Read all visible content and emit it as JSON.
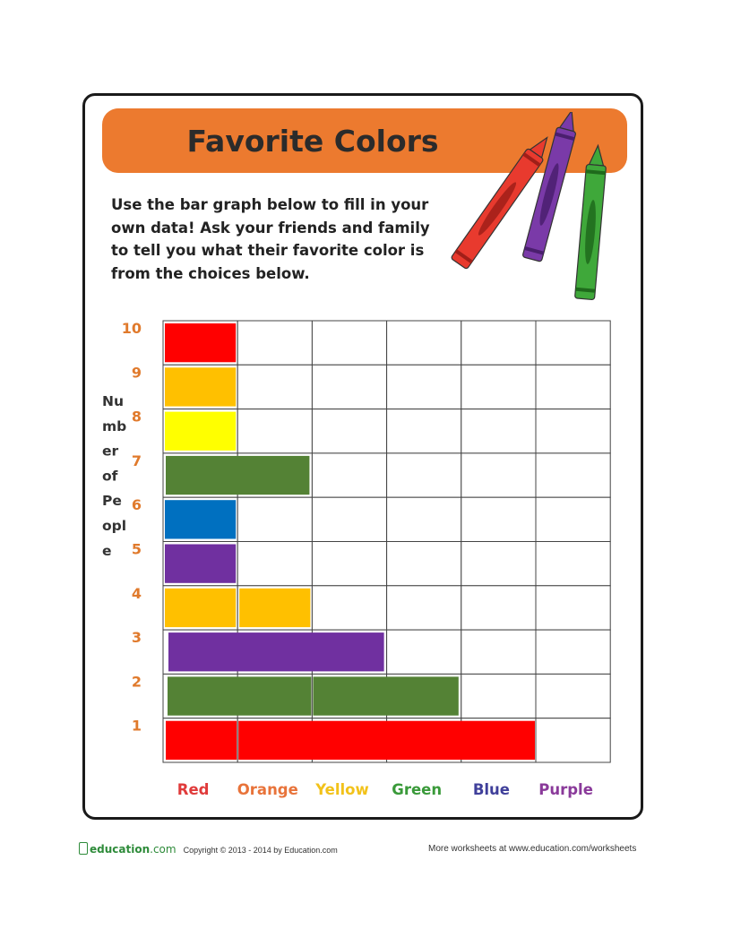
{
  "page": {
    "title": "Favorite Colors",
    "instructions": "Use the bar graph below to fill in your own data! Ask your friends and family to tell you what their favorite color is from the choices below."
  },
  "colors": {
    "banner": "#ec7a2f",
    "tick_labels": "#e07a2c",
    "red": "#ff0000",
    "orange": "#ffc000",
    "yellow": "#ffff00",
    "green": "#548235",
    "blue": "#0070c0",
    "purple": "#7030a0"
  },
  "chart_data": {
    "type": "bar",
    "ylabel": "Number of People",
    "ylabel_lines": [
      "Nu",
      "mb",
      "er",
      "of",
      "Pe",
      "opl",
      "e"
    ],
    "y_ticks": [
      1,
      2,
      3,
      4,
      5,
      6,
      7,
      8,
      9,
      10
    ],
    "categories": [
      {
        "label": "Red",
        "color": "#e03a3a"
      },
      {
        "label": "Orange",
        "color": "#e8733a"
      },
      {
        "label": "Yellow",
        "color": "#f2c21a"
      },
      {
        "label": "Green",
        "color": "#3a9a3a"
      },
      {
        "label": "Blue",
        "color": "#3f3f9a"
      },
      {
        "label": "Purple",
        "color": "#8a3a9a"
      }
    ],
    "grid": true,
    "rows": [
      {
        "value": 10,
        "cells": [
          "red"
        ]
      },
      {
        "value": 9,
        "cells": [
          "orange"
        ]
      },
      {
        "value": 8,
        "cells": [
          "yellow"
        ]
      },
      {
        "value": 7,
        "cells": [
          "green",
          "green"
        ]
      },
      {
        "value": 6,
        "cells": [
          "blue"
        ]
      },
      {
        "value": 5,
        "cells": [
          "purple"
        ]
      },
      {
        "value": 4,
        "cells": [
          "orange",
          "orange"
        ]
      },
      {
        "value": 3,
        "cells": [
          "purple",
          "purple",
          "purple"
        ]
      },
      {
        "value": 2,
        "cells": [
          "green",
          "green",
          "green",
          "green"
        ]
      },
      {
        "value": 1,
        "cells": [
          "red",
          "red",
          "red",
          "red",
          "red"
        ]
      }
    ]
  },
  "crayons": [
    {
      "name": "red",
      "color": "#e83a2e",
      "dark": "#a01f18"
    },
    {
      "name": "purple",
      "color": "#7a3aa8",
      "dark": "#4a1f6e"
    },
    {
      "name": "green",
      "color": "#3fa83a",
      "dark": "#1f6a1c"
    }
  ],
  "footer": {
    "brand": "education",
    "brand_tld": ".com",
    "copyright": "Copyright © 2013 - 2014  by Education.com",
    "more": "More worksheets at www.education.com/worksheets"
  }
}
